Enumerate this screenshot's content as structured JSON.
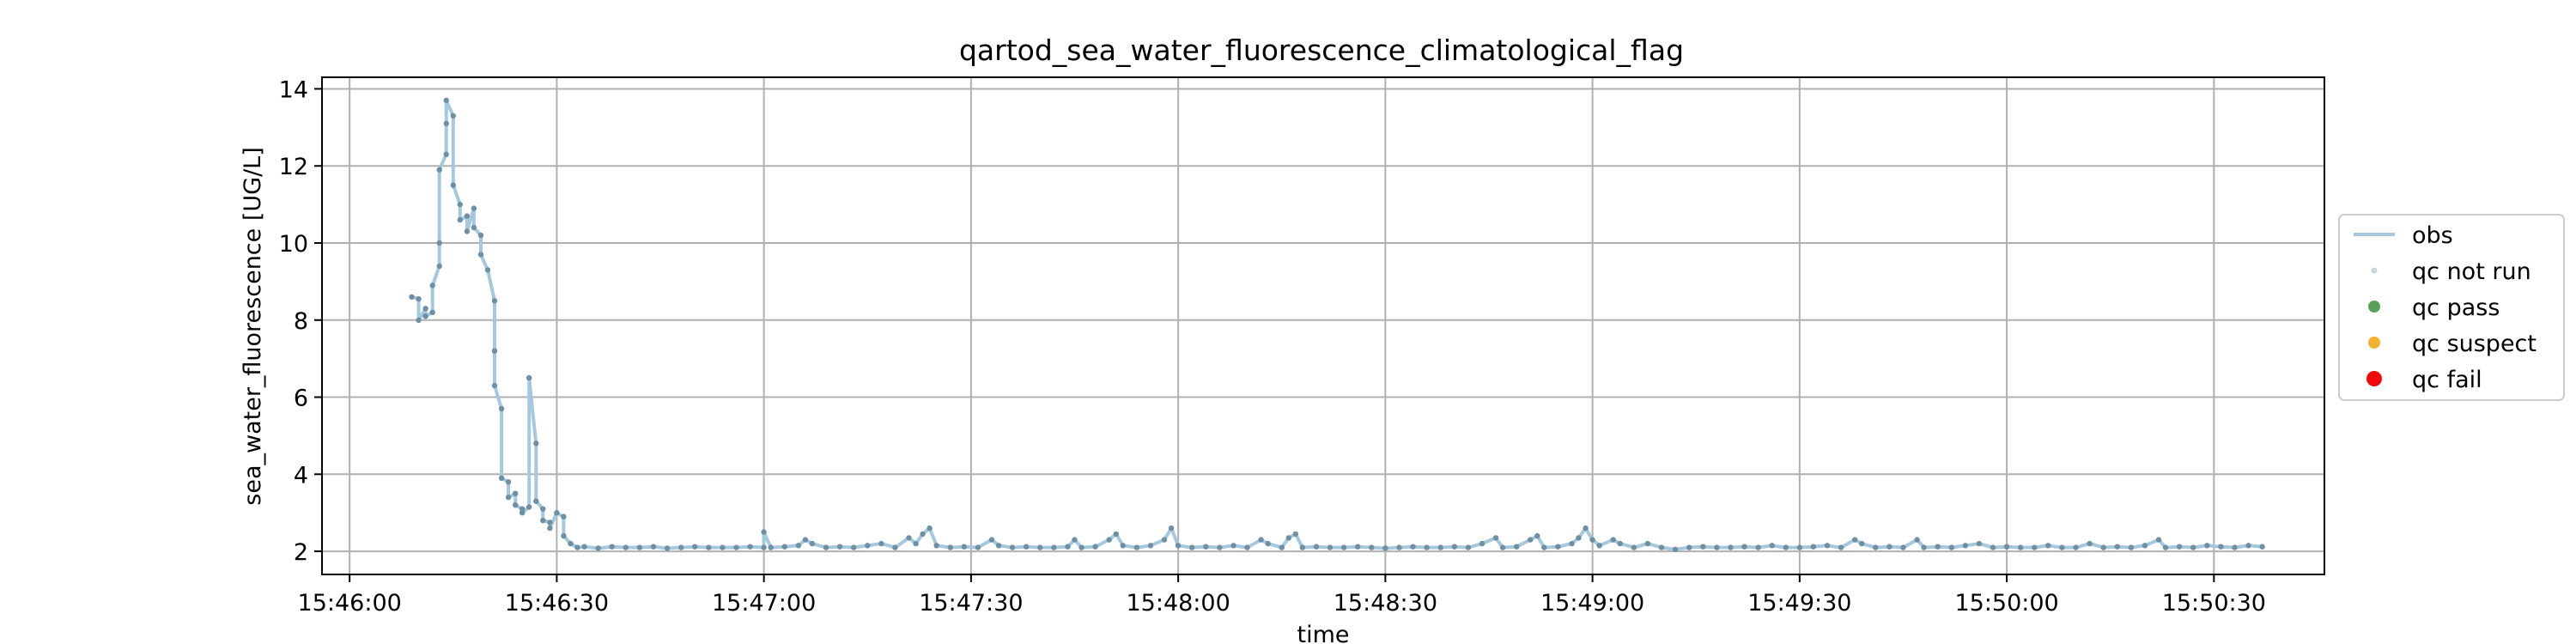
{
  "chart_data": {
    "type": "line",
    "title": "qartod_sea_water_fluorescence_climatological_flag",
    "xlabel": "time",
    "ylabel": "sea_water_fluorescence [UG/L]",
    "x_is_time": true,
    "xlim": [
      "15:45:56",
      "15:50:46"
    ],
    "ylim": [
      1.4,
      14.3
    ],
    "xticks": [
      "15:46:00",
      "15:46:30",
      "15:47:00",
      "15:47:30",
      "15:48:00",
      "15:48:30",
      "15:49:00",
      "15:49:30",
      "15:50:00",
      "15:50:30"
    ],
    "yticks": [
      2,
      4,
      6,
      8,
      10,
      12,
      14
    ],
    "grid": true,
    "legend_position": "right-outside",
    "colors": {
      "obs": "#a6c8dd",
      "qc_not_run": "#c8d4dc",
      "qc_pass": "#5aa05a",
      "qc_suspect": "#f2b132",
      "qc_fail": "#ee0a0a",
      "marker": "#6f8fa3"
    },
    "legend": [
      {
        "label": "obs",
        "kind": "line",
        "color": "#a6c8dd"
      },
      {
        "label": "qc not run",
        "kind": "dot-small",
        "color": "#c8d4dc"
      },
      {
        "label": "qc pass",
        "kind": "dot",
        "color": "#5aa05a"
      },
      {
        "label": "qc suspect",
        "kind": "dot",
        "color": "#f2b132"
      },
      {
        "label": "qc fail",
        "kind": "dot-large",
        "color": "#ee0a0a"
      }
    ],
    "series": [
      {
        "name": "obs",
        "qc_flag": "qc not run",
        "points": [
          [
            "15:46:09",
            8.6
          ],
          [
            "15:46:10",
            8.55
          ],
          [
            "15:46:10",
            8.0
          ],
          [
            "15:46:11",
            8.3
          ],
          [
            "15:46:11",
            8.1
          ],
          [
            "15:46:12",
            8.2
          ],
          [
            "15:46:12",
            8.9
          ],
          [
            "15:46:13",
            9.4
          ],
          [
            "15:46:13",
            10.0
          ],
          [
            "15:46:13",
            11.9
          ],
          [
            "15:46:14",
            12.3
          ],
          [
            "15:46:14",
            13.1
          ],
          [
            "15:46:14",
            13.7
          ],
          [
            "15:46:15",
            13.3
          ],
          [
            "15:46:15",
            11.5
          ],
          [
            "15:46:16",
            11.0
          ],
          [
            "15:46:16",
            10.6
          ],
          [
            "15:46:17",
            10.7
          ],
          [
            "15:46:17",
            10.3
          ],
          [
            "15:46:18",
            10.9
          ],
          [
            "15:46:18",
            10.4
          ],
          [
            "15:46:19",
            10.2
          ],
          [
            "15:46:19",
            9.7
          ],
          [
            "15:46:20",
            9.3
          ],
          [
            "15:46:21",
            8.5
          ],
          [
            "15:46:21",
            7.2
          ],
          [
            "15:46:21",
            6.3
          ],
          [
            "15:46:22",
            5.7
          ],
          [
            "15:46:22",
            3.9
          ],
          [
            "15:46:23",
            3.8
          ],
          [
            "15:46:23",
            3.4
          ],
          [
            "15:46:24",
            3.5
          ],
          [
            "15:46:24",
            3.2
          ],
          [
            "15:46:25",
            3.1
          ],
          [
            "15:46:25",
            3.0
          ],
          [
            "15:46:26",
            3.15
          ],
          [
            "15:46:26",
            6.5
          ],
          [
            "15:46:27",
            4.8
          ],
          [
            "15:46:27",
            3.3
          ],
          [
            "15:46:28",
            3.1
          ],
          [
            "15:46:28",
            2.8
          ],
          [
            "15:46:29",
            2.75
          ],
          [
            "15:46:29",
            2.6
          ],
          [
            "15:46:30",
            3.0
          ],
          [
            "15:46:31",
            2.9
          ],
          [
            "15:46:31",
            2.4
          ],
          [
            "15:46:32",
            2.2
          ],
          [
            "15:46:33",
            2.1
          ],
          [
            "15:46:34",
            2.12
          ],
          [
            "15:46:36",
            2.08
          ],
          [
            "15:46:38",
            2.12
          ],
          [
            "15:46:40",
            2.1
          ],
          [
            "15:46:42",
            2.1
          ],
          [
            "15:46:44",
            2.12
          ],
          [
            "15:46:46",
            2.08
          ],
          [
            "15:46:48",
            2.1
          ],
          [
            "15:46:50",
            2.12
          ],
          [
            "15:46:52",
            2.1
          ],
          [
            "15:46:54",
            2.1
          ],
          [
            "15:46:56",
            2.1
          ],
          [
            "15:46:58",
            2.12
          ],
          [
            "15:47:00",
            2.1
          ],
          [
            "15:47:00",
            2.5
          ],
          [
            "15:47:01",
            2.1
          ],
          [
            "15:47:03",
            2.12
          ],
          [
            "15:47:05",
            2.15
          ],
          [
            "15:47:06",
            2.3
          ],
          [
            "15:47:07",
            2.2
          ],
          [
            "15:47:09",
            2.1
          ],
          [
            "15:47:11",
            2.12
          ],
          [
            "15:47:13",
            2.1
          ],
          [
            "15:47:15",
            2.15
          ],
          [
            "15:47:17",
            2.2
          ],
          [
            "15:47:19",
            2.1
          ],
          [
            "15:47:21",
            2.35
          ],
          [
            "15:47:22",
            2.2
          ],
          [
            "15:47:23",
            2.45
          ],
          [
            "15:47:24",
            2.6
          ],
          [
            "15:47:25",
            2.15
          ],
          [
            "15:47:27",
            2.1
          ],
          [
            "15:47:29",
            2.12
          ],
          [
            "15:47:31",
            2.1
          ],
          [
            "15:47:33",
            2.3
          ],
          [
            "15:47:34",
            2.15
          ],
          [
            "15:47:36",
            2.1
          ],
          [
            "15:47:38",
            2.12
          ],
          [
            "15:47:40",
            2.1
          ],
          [
            "15:47:42",
            2.1
          ],
          [
            "15:47:44",
            2.12
          ],
          [
            "15:47:45",
            2.3
          ],
          [
            "15:47:46",
            2.1
          ],
          [
            "15:47:48",
            2.12
          ],
          [
            "15:47:50",
            2.3
          ],
          [
            "15:47:51",
            2.45
          ],
          [
            "15:47:52",
            2.15
          ],
          [
            "15:47:54",
            2.1
          ],
          [
            "15:47:56",
            2.15
          ],
          [
            "15:47:58",
            2.3
          ],
          [
            "15:47:59",
            2.6
          ],
          [
            "15:48:00",
            2.15
          ],
          [
            "15:48:02",
            2.1
          ],
          [
            "15:48:04",
            2.12
          ],
          [
            "15:48:06",
            2.1
          ],
          [
            "15:48:08",
            2.15
          ],
          [
            "15:48:10",
            2.1
          ],
          [
            "15:48:12",
            2.3
          ],
          [
            "15:48:13",
            2.2
          ],
          [
            "15:48:15",
            2.1
          ],
          [
            "15:48:16",
            2.35
          ],
          [
            "15:48:17",
            2.45
          ],
          [
            "15:48:18",
            2.1
          ],
          [
            "15:48:20",
            2.12
          ],
          [
            "15:48:22",
            2.1
          ],
          [
            "15:48:24",
            2.1
          ],
          [
            "15:48:26",
            2.12
          ],
          [
            "15:48:28",
            2.1
          ],
          [
            "15:48:30",
            2.08
          ],
          [
            "15:48:32",
            2.1
          ],
          [
            "15:48:34",
            2.12
          ],
          [
            "15:48:36",
            2.1
          ],
          [
            "15:48:38",
            2.1
          ],
          [
            "15:48:40",
            2.12
          ],
          [
            "15:48:42",
            2.1
          ],
          [
            "15:48:44",
            2.2
          ],
          [
            "15:48:46",
            2.35
          ],
          [
            "15:48:47",
            2.1
          ],
          [
            "15:48:49",
            2.12
          ],
          [
            "15:48:51",
            2.3
          ],
          [
            "15:48:52",
            2.4
          ],
          [
            "15:48:53",
            2.1
          ],
          [
            "15:48:55",
            2.12
          ],
          [
            "15:48:57",
            2.2
          ],
          [
            "15:48:58",
            2.35
          ],
          [
            "15:48:59",
            2.6
          ],
          [
            "15:49:00",
            2.3
          ],
          [
            "15:49:01",
            2.15
          ],
          [
            "15:49:03",
            2.3
          ],
          [
            "15:49:04",
            2.2
          ],
          [
            "15:49:06",
            2.1
          ],
          [
            "15:49:08",
            2.2
          ],
          [
            "15:49:10",
            2.1
          ],
          [
            "15:49:12",
            2.05
          ],
          [
            "15:49:14",
            2.1
          ],
          [
            "15:49:16",
            2.12
          ],
          [
            "15:49:18",
            2.1
          ],
          [
            "15:49:20",
            2.1
          ],
          [
            "15:49:22",
            2.12
          ],
          [
            "15:49:24",
            2.1
          ],
          [
            "15:49:26",
            2.15
          ],
          [
            "15:49:28",
            2.1
          ],
          [
            "15:49:30",
            2.1
          ],
          [
            "15:49:32",
            2.12
          ],
          [
            "15:49:34",
            2.15
          ],
          [
            "15:49:36",
            2.1
          ],
          [
            "15:49:38",
            2.3
          ],
          [
            "15:49:39",
            2.2
          ],
          [
            "15:49:41",
            2.1
          ],
          [
            "15:49:43",
            2.12
          ],
          [
            "15:49:45",
            2.1
          ],
          [
            "15:49:47",
            2.3
          ],
          [
            "15:49:48",
            2.1
          ],
          [
            "15:49:50",
            2.12
          ],
          [
            "15:49:52",
            2.1
          ],
          [
            "15:49:54",
            2.15
          ],
          [
            "15:49:56",
            2.2
          ],
          [
            "15:49:58",
            2.1
          ],
          [
            "15:50:00",
            2.12
          ],
          [
            "15:50:02",
            2.1
          ],
          [
            "15:50:04",
            2.1
          ],
          [
            "15:50:06",
            2.15
          ],
          [
            "15:50:08",
            2.1
          ],
          [
            "15:50:10",
            2.1
          ],
          [
            "15:50:12",
            2.2
          ],
          [
            "15:50:14",
            2.1
          ],
          [
            "15:50:16",
            2.12
          ],
          [
            "15:50:18",
            2.1
          ],
          [
            "15:50:20",
            2.15
          ],
          [
            "15:50:22",
            2.3
          ],
          [
            "15:50:23",
            2.1
          ],
          [
            "15:50:25",
            2.12
          ],
          [
            "15:50:27",
            2.1
          ],
          [
            "15:50:29",
            2.15
          ],
          [
            "15:50:31",
            2.12
          ],
          [
            "15:50:33",
            2.1
          ],
          [
            "15:50:35",
            2.15
          ],
          [
            "15:50:37",
            2.12
          ]
        ]
      }
    ]
  }
}
